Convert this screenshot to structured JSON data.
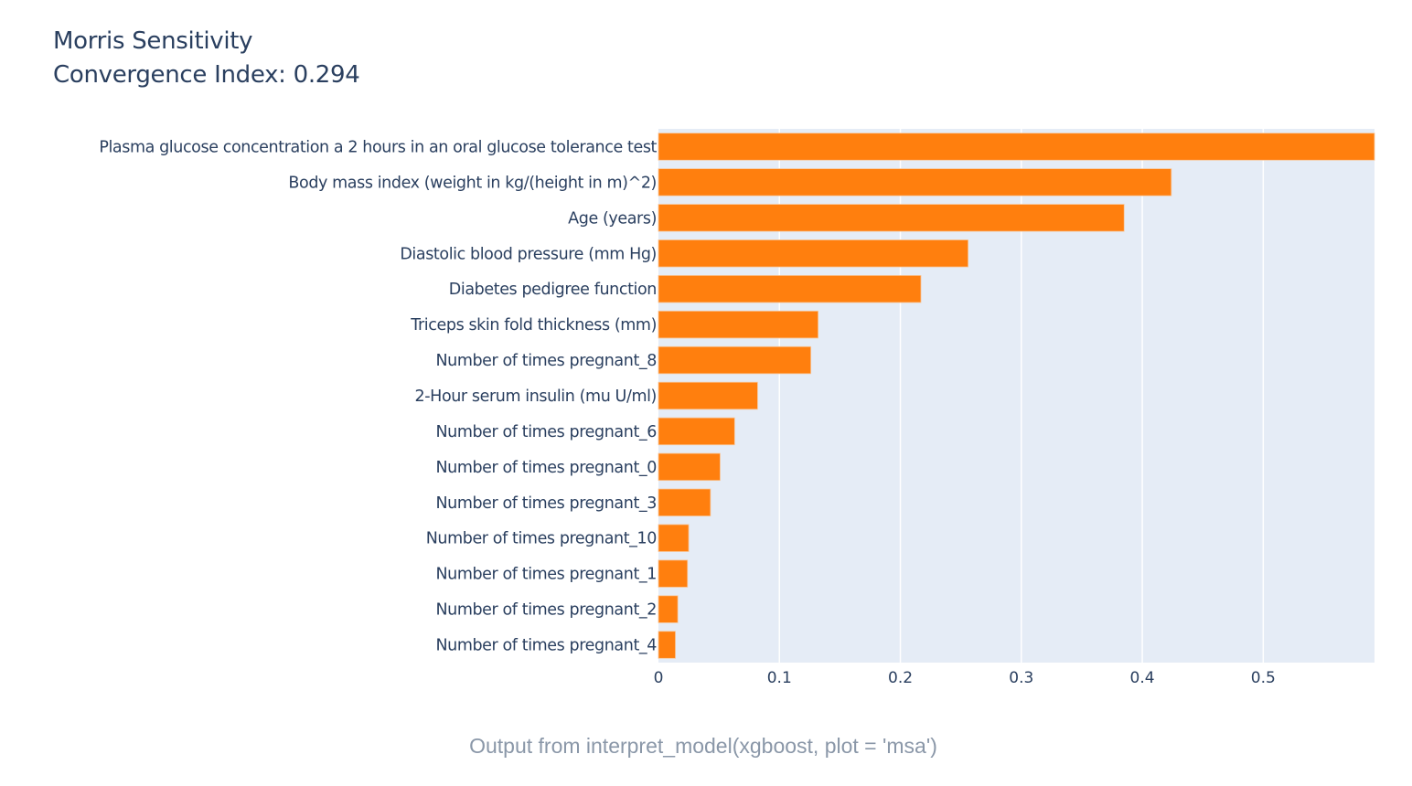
{
  "chart_data": {
    "type": "bar",
    "orientation": "horizontal",
    "title": "Morris Sensitivity",
    "subtitle": "Convergence Index: 0.294",
    "xlabel": "",
    "ylabel": "",
    "xlim": [
      0,
      0.592
    ],
    "xticks": [
      0,
      0.1,
      0.2,
      0.3,
      0.4,
      0.5
    ],
    "xtick_labels": [
      "0",
      "0.1",
      "0.2",
      "0.3",
      "0.4",
      "0.5"
    ],
    "grid": true,
    "bar_color": "#ff7f0e",
    "plot_bg": "#e5ecf6",
    "categories": [
      "Plasma glucose concentration a 2 hours in an oral glucose tolerance test",
      "Body mass index (weight in kg/(height in m)^2)",
      "Age (years)",
      "Diastolic blood pressure (mm Hg)",
      "Diabetes pedigree function",
      "Triceps skin fold thickness (mm)",
      "Number of times pregnant_8",
      "2-Hour serum insulin (mu U/ml)",
      "Number of times pregnant_6",
      "Number of times pregnant_0",
      "Number of times pregnant_3",
      "Number of times pregnant_10",
      "Number of times pregnant_1",
      "Number of times pregnant_2",
      "Number of times pregnant_4"
    ],
    "values": [
      0.592,
      0.424,
      0.385,
      0.256,
      0.217,
      0.132,
      0.126,
      0.082,
      0.063,
      0.051,
      0.043,
      0.025,
      0.024,
      0.016,
      0.014
    ]
  },
  "caption": "Output from interpret_model(xgboost, plot = 'msa')"
}
